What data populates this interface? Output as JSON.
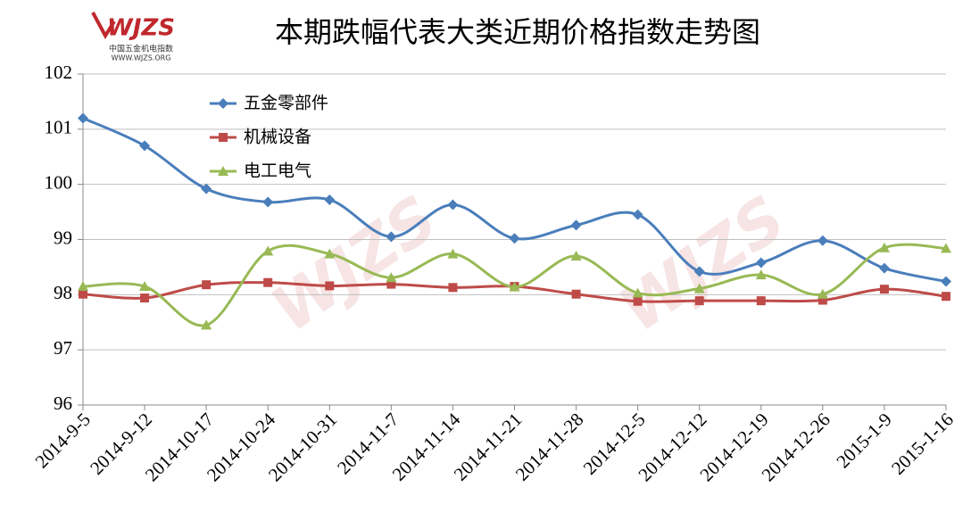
{
  "chart_data": {
    "type": "line",
    "title": "本期跌幅代表大类近期价格指数走势图",
    "logo": {
      "mark": "WJZS",
      "name": "中国五金机电指数",
      "url": "WWW.WJZS.ORG"
    },
    "categories": [
      "2014-9-5",
      "2014-9-12",
      "2014-10-17",
      "2014-10-24",
      "2014-10-31",
      "2014-11-7",
      "2014-11-14",
      "2014-11-21",
      "2014-11-28",
      "2014-12-5",
      "2014-12-12",
      "2014-12-19",
      "2014-12-26",
      "2015-1-9",
      "2015-1-16"
    ],
    "series": [
      {
        "name": "五金零部件",
        "color": "#4a7ebb",
        "marker": "diamond",
        "values": [
          101.2,
          100.7,
          99.92,
          99.68,
          99.72,
          99.05,
          99.63,
          99.02,
          99.26,
          99.45,
          98.42,
          98.58,
          98.98,
          98.48,
          98.24
        ]
      },
      {
        "name": "机械设备",
        "color": "#be4b48",
        "marker": "square",
        "values": [
          98.01,
          97.94,
          98.18,
          98.22,
          98.16,
          98.19,
          98.13,
          98.15,
          98.01,
          97.88,
          97.89,
          97.89,
          97.9,
          98.1,
          97.97
        ]
      },
      {
        "name": "电工电气",
        "color": "#98b954",
        "marker": "triangle",
        "values": [
          98.15,
          98.15,
          97.45,
          98.79,
          98.74,
          98.31,
          98.74,
          98.14,
          98.7,
          98.03,
          98.11,
          98.36,
          98.01,
          98.85,
          98.84
        ]
      }
    ],
    "ylim": [
      96,
      102
    ],
    "yticks": [
      96,
      97,
      98,
      99,
      100,
      101,
      102
    ],
    "grid": true,
    "smooth": true,
    "legend": "top-left"
  }
}
